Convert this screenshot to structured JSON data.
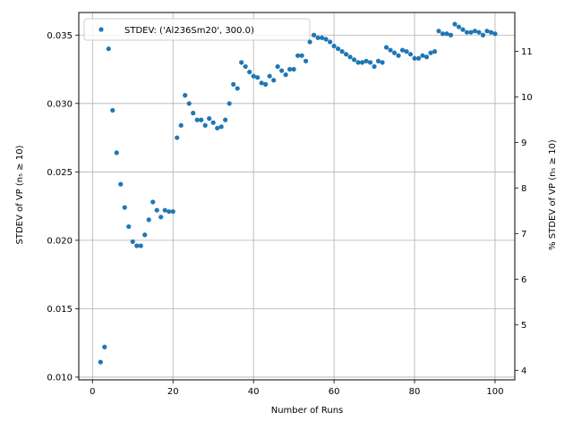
{
  "chart_data": {
    "type": "scatter",
    "xlabel": "Number of Runs",
    "ylabel_left": "STDEV of VP (n₅ ≥ 10)",
    "ylabel_right": "% STDEV of VP (n₅ ≥ 10)",
    "xlim": [
      -3.4,
      104.9
    ],
    "ylim_left": [
      0.0098,
      0.03665
    ],
    "ylim_right": [
      3.79,
      11.85
    ],
    "x_ticks": [
      0,
      20,
      40,
      60,
      80,
      100
    ],
    "y_ticks_left": [
      0.01,
      0.015,
      0.02,
      0.025,
      0.03,
      0.035
    ],
    "y_tick_labels_left": [
      "0.010",
      "0.015",
      "0.020",
      "0.025",
      "0.030",
      "0.035"
    ],
    "y_ticks_right": [
      4,
      5,
      6,
      7,
      8,
      9,
      10,
      11
    ],
    "grid": true,
    "legend_position": "top-left",
    "series": [
      {
        "name": "STDEV: ('Al236Sm20', 300.0)",
        "color": "#1f77b4",
        "x": [
          2,
          3,
          4,
          5,
          6,
          7,
          8,
          9,
          10,
          11,
          12,
          13,
          14,
          15,
          16,
          17,
          18,
          19,
          20,
          21,
          22,
          23,
          24,
          25,
          26,
          27,
          28,
          29,
          30,
          31,
          32,
          33,
          34,
          35,
          36,
          37,
          38,
          39,
          40,
          41,
          42,
          43,
          44,
          45,
          46,
          47,
          48,
          49,
          50,
          51,
          52,
          53,
          54,
          55,
          56,
          57,
          58,
          59,
          60,
          61,
          62,
          63,
          64,
          65,
          66,
          67,
          68,
          69,
          70,
          71,
          72,
          73,
          74,
          75,
          76,
          77,
          78,
          79,
          80,
          81,
          82,
          83,
          84,
          85,
          86,
          87,
          88,
          89,
          90,
          91,
          92,
          93,
          94,
          95,
          96,
          97,
          98,
          99,
          100
        ],
        "y": [
          0.0111,
          0.0122,
          0.034,
          0.0295,
          0.0264,
          0.0241,
          0.0224,
          0.021,
          0.0199,
          0.0196,
          0.0196,
          0.0204,
          0.0215,
          0.0228,
          0.0222,
          0.0217,
          0.0222,
          0.0221,
          0.0221,
          0.0275,
          0.0284,
          0.0306,
          0.03,
          0.0293,
          0.0288,
          0.0288,
          0.0284,
          0.0289,
          0.0286,
          0.0282,
          0.0283,
          0.0288,
          0.03,
          0.0314,
          0.0311,
          0.033,
          0.0327,
          0.0323,
          0.032,
          0.0319,
          0.0315,
          0.0314,
          0.032,
          0.0317,
          0.0327,
          0.0324,
          0.0321,
          0.0325,
          0.0325,
          0.0335,
          0.0335,
          0.0331,
          0.0345,
          0.035,
          0.0348,
          0.0348,
          0.0347,
          0.0345,
          0.0342,
          0.034,
          0.0338,
          0.0336,
          0.0334,
          0.0332,
          0.033,
          0.033,
          0.0331,
          0.033,
          0.0327,
          0.0331,
          0.033,
          0.0341,
          0.0339,
          0.0337,
          0.0335,
          0.0339,
          0.0338,
          0.0336,
          0.0333,
          0.0333,
          0.0335,
          0.0334,
          0.0337,
          0.0338,
          0.0353,
          0.0351,
          0.0351,
          0.035,
          0.0358,
          0.0356,
          0.0354,
          0.0352,
          0.0352,
          0.0353,
          0.0352,
          0.035,
          0.0353,
          0.0352,
          0.0351
        ]
      }
    ]
  }
}
